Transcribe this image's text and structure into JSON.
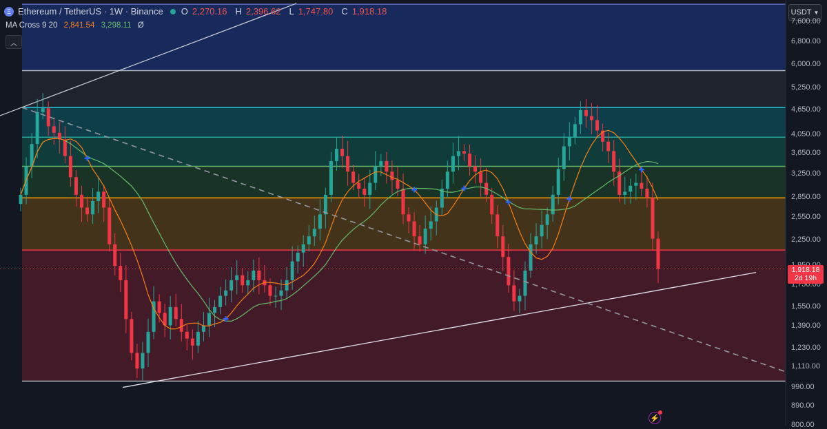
{
  "header": {
    "symbol": "Ethereum / TetherUS · 1W · Binance",
    "open_label": "O",
    "open": "2,270.16",
    "high_label": "H",
    "high": "2,396.62",
    "low_label": "L",
    "low": "1,747.80",
    "close_label": "C",
    "close": "1,918.18"
  },
  "indicator": {
    "name": "MA Cross 9 20",
    "ma_fast": "2,841.54",
    "ma_slow": "3,298.11",
    "icon": "Ø"
  },
  "currency": {
    "label": "USDT"
  },
  "last_price": {
    "price": "1,918.18",
    "countdown": "2d 19h"
  },
  "icons": {
    "logo": "ethereum-logo-icon",
    "collapse": "chevron-up-icon",
    "dropdown": "chevron-down-icon",
    "alert": "lightning-icon"
  },
  "colors": {
    "up": "#26a69a",
    "down": "#f23645",
    "ma_fast": "#f57f17",
    "ma_slow": "#66bb6a",
    "cross": "#2962ff"
  },
  "chart_data": {
    "type": "candlestick",
    "y_scale": "log",
    "y_ticks": [
      "7,600.00",
      "6,800.00",
      "6,000.00",
      "5,250.00",
      "4,650.00",
      "4,050.00",
      "3,650.00",
      "3,250.00",
      "2,850.00",
      "2,550.00",
      "2,250.00",
      "1,950.00",
      "1,750.00",
      "1,550.00",
      "1,390.00",
      "1,230.00",
      "1,110.00",
      "990.00",
      "890.00",
      "800.00"
    ],
    "y_tick_values": [
      7600,
      6800,
      6000,
      5250,
      4650,
      4050,
      3650,
      3250,
      2850,
      2550,
      2250,
      1950,
      1750,
      1550,
      1390,
      1230,
      1110,
      990,
      890,
      800
    ],
    "ylim": [
      800,
      8600
    ],
    "levels": [
      {
        "price": 8400,
        "color": "#5b6ab7"
      },
      {
        "price": 5800,
        "color": "#b2b5be"
      },
      {
        "price": 4720,
        "color": "#26c6da"
      },
      {
        "price": 4000,
        "color": "#26a69a"
      },
      {
        "price": 3400,
        "color": "#66bb6a"
      },
      {
        "price": 2850,
        "color": "#ff9800"
      },
      {
        "price": 2130,
        "color": "#f23645"
      },
      {
        "price": 1025,
        "color": "#b2b5be"
      }
    ],
    "zones": [
      {
        "from": 5800,
        "to": 8400,
        "color": "#1e3a8a"
      },
      {
        "from": 4720,
        "to": 5800,
        "color": "#2a2e39"
      },
      {
        "from": 4000,
        "to": 4720,
        "color": "#0b5e6b"
      },
      {
        "from": 3400,
        "to": 4000,
        "color": "#0f5b50"
      },
      {
        "from": 2850,
        "to": 3400,
        "color": "#1f4d2c"
      },
      {
        "from": 2130,
        "to": 2850,
        "color": "#6b4a16"
      },
      {
        "from": 1025,
        "to": 2130,
        "color": "#6b1f2e"
      }
    ],
    "trend_lines": [
      {
        "from": [
          0,
          3250
        ],
        "to": [
          84,
          1745
        ],
        "style": "solid"
      },
      {
        "from": [
          0,
          4650
        ],
        "to": [
          93,
          1000
        ],
        "style": "dashed"
      }
    ],
    "closes": [
      2900,
      3400,
      3850,
      4600,
      4700,
      4250,
      4100,
      3950,
      3600,
      3200,
      2900,
      2700,
      2600,
      2800,
      2950,
      2700,
      2200,
      1950,
      1800,
      1450,
      1200,
      1100,
      1200,
      1350,
      1600,
      1500,
      1400,
      1550,
      1450,
      1350,
      1300,
      1250,
      1350,
      1400,
      1500,
      1550,
      1650,
      1700,
      1800,
      1850,
      1750,
      1800,
      1900,
      1800,
      1750,
      1650,
      1650,
      1700,
      1800,
      2000,
      2100,
      2200,
      2300,
      2400,
      2600,
      2900,
      3500,
      3750,
      3600,
      3300,
      3100,
      3000,
      2900,
      3100,
      3400,
      3500,
      3300,
      3150,
      3000,
      2600,
      2500,
      2300,
      2200,
      2400,
      2500,
      2700,
      3000,
      3300,
      3600,
      3700,
      3650,
      3400,
      3300,
      3100,
      2900,
      2600,
      2300,
      2050,
      1750,
      1600,
      1650,
      1900,
      2200,
      2300,
      2450,
      2600,
      2900,
      3350,
      3800,
      4000,
      4300,
      4650,
      4500,
      4400,
      4150,
      3900,
      3700,
      3300,
      2900,
      2950,
      3050,
      3100,
      3000,
      2850,
      2270,
      1918
    ]
  }
}
